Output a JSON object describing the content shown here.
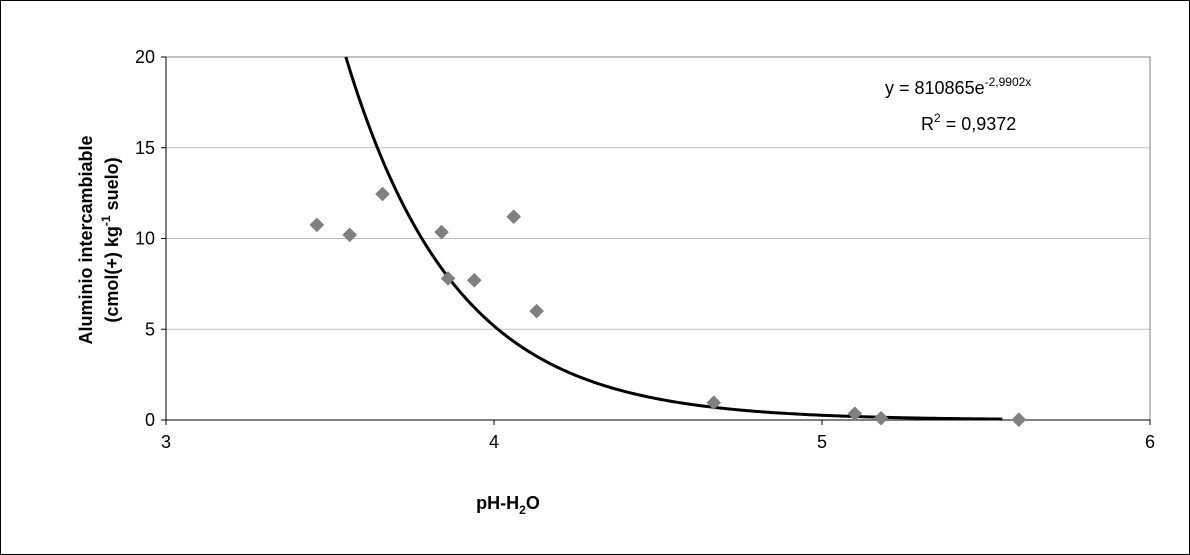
{
  "chart_data": {
    "type": "scatter",
    "title": "",
    "xlabel": {
      "prefix": "pH-H",
      "sub": "2",
      "suffix": "O"
    },
    "ylabel": {
      "line1": "Aluminio intercambiable",
      "line2_prefix": "(cmol(+) kg",
      "line2_sup": "-1",
      "line2_suffix": " suelo)"
    },
    "xlim": [
      3,
      6
    ],
    "ylim": [
      0,
      20
    ],
    "x_ticks": [
      3,
      4,
      5,
      6
    ],
    "y_ticks": [
      0,
      5,
      10,
      15,
      20
    ],
    "grid": {
      "horizontal": true,
      "vertical": false
    },
    "marker_color": "#808080",
    "line_color": "#000000",
    "points": [
      {
        "x": 3.46,
        "y": 10.75
      },
      {
        "x": 3.56,
        "y": 10.2
      },
      {
        "x": 3.66,
        "y": 12.45
      },
      {
        "x": 3.84,
        "y": 10.35
      },
      {
        "x": 3.86,
        "y": 7.8
      },
      {
        "x": 3.94,
        "y": 7.7
      },
      {
        "x": 4.06,
        "y": 11.2
      },
      {
        "x": 4.13,
        "y": 6.0
      },
      {
        "x": 4.67,
        "y": 0.95
      },
      {
        "x": 5.1,
        "y": 0.35
      },
      {
        "x": 5.18,
        "y": 0.1
      },
      {
        "x": 5.6,
        "y": 0.02
      }
    ],
    "trendline": {
      "type": "exponential",
      "a": 810865,
      "b": -2.9902,
      "x_range": [
        3.55,
        5.55
      ],
      "equation": {
        "prefix": "y = 810865e",
        "exponent": "-2,9902x"
      },
      "r2": {
        "label": "R",
        "sup": "2",
        "value": " = 0,9372"
      }
    }
  }
}
